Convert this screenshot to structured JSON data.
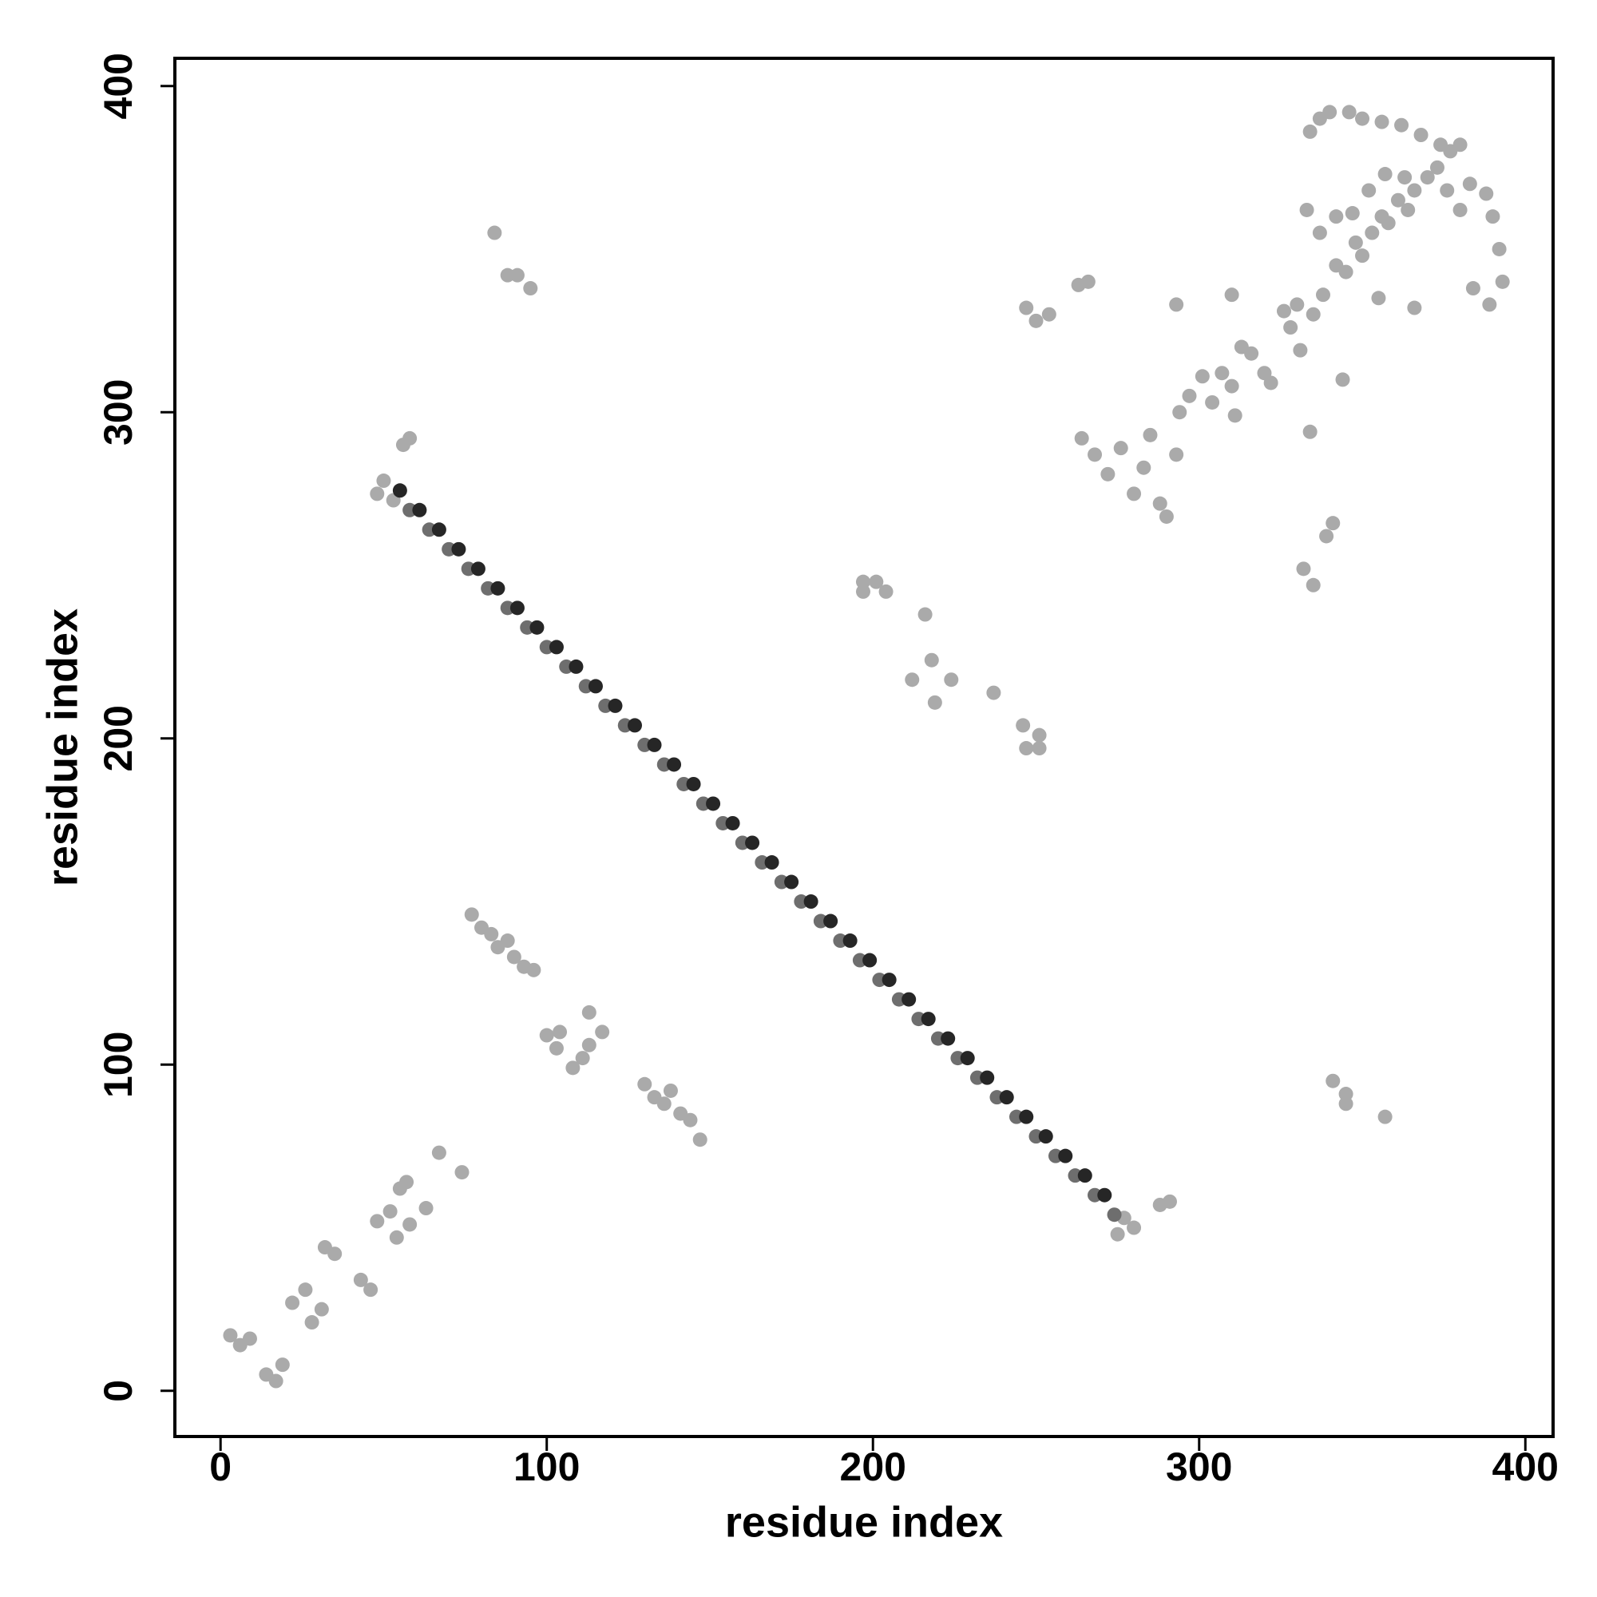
{
  "chart_data": {
    "type": "scatter",
    "x_label": "residue index",
    "y_label": "residue index",
    "xlim": [
      -14,
      408.5
    ],
    "ylim": [
      -14,
      408.5
    ],
    "xticks": [
      0,
      100,
      200,
      300,
      400
    ],
    "yticks": [
      0,
      100,
      200,
      300,
      400
    ],
    "grid": false,
    "series": [
      {
        "color": "#aaaaaa",
        "x": [
          3,
          6,
          9,
          14,
          17,
          19,
          22,
          26,
          28,
          31,
          32,
          35,
          43,
          46,
          48,
          52,
          54,
          55,
          57,
          58,
          63,
          67,
          74,
          77,
          80,
          83,
          85,
          88,
          90,
          93,
          96,
          100,
          103,
          104,
          108,
          111,
          113,
          117,
          113,
          130,
          133,
          136,
          138,
          141,
          144,
          147,
          84,
          88,
          91,
          95,
          48,
          50,
          53,
          56,
          58,
          275,
          280,
          277,
          288,
          291,
          197,
          201,
          204,
          197,
          216,
          212,
          218,
          219,
          224,
          237,
          246,
          247,
          251,
          251,
          247,
          250,
          254,
          263,
          266,
          264,
          268,
          272,
          276,
          280,
          283,
          285,
          288,
          290,
          293,
          293,
          294,
          297,
          301,
          304,
          307,
          310,
          311,
          310,
          313,
          316,
          320,
          322,
          326,
          328,
          330,
          334,
          332,
          335,
          341,
          339,
          344,
          341,
          345,
          345,
          357,
          331,
          335,
          338,
          342,
          345,
          348,
          350,
          353,
          356,
          358,
          361,
          364,
          366,
          370,
          373,
          377,
          380,
          376,
          380,
          383,
          388,
          390,
          392,
          393,
          389,
          384,
          366,
          355,
          333,
          337,
          334,
          337,
          340,
          346,
          350,
          356,
          362,
          368,
          374,
          363,
          357,
          352,
          342,
          347
        ],
        "values": [
          17,
          14,
          16,
          5,
          3,
          8,
          27,
          31,
          21,
          25,
          44,
          42,
          34,
          31,
          52,
          55,
          47,
          62,
          64,
          51,
          56,
          73,
          67,
          146,
          142,
          140,
          136,
          138,
          133,
          130,
          129,
          109,
          105,
          110,
          99,
          102,
          116,
          110,
          106,
          94,
          90,
          88,
          92,
          85,
          83,
          77,
          355,
          342,
          342,
          338,
          275,
          279,
          273,
          290,
          292,
          48,
          50,
          53,
          57,
          58,
          248,
          248,
          245,
          245,
          238,
          218,
          224,
          211,
          218,
          214,
          204,
          197,
          201,
          197,
          332,
          328,
          330,
          339,
          340,
          292,
          287,
          281,
          289,
          275,
          283,
          293,
          272,
          268,
          287,
          333,
          300,
          305,
          311,
          303,
          312,
          308,
          299,
          336,
          320,
          318,
          312,
          309,
          331,
          326,
          333,
          294,
          252,
          247,
          266,
          262,
          310,
          95,
          91,
          88,
          84,
          319,
          330,
          336,
          345,
          343,
          352,
          348,
          355,
          360,
          358,
          365,
          362,
          368,
          372,
          375,
          380,
          382,
          368,
          362,
          370,
          367,
          360,
          350,
          340,
          333,
          338,
          332,
          335,
          362,
          355,
          386,
          390,
          392,
          392,
          390,
          389,
          388,
          385,
          382,
          372,
          373,
          368,
          360,
          361
        ]
      },
      {
        "color": "#6e6e6e",
        "x": [
          58,
          64,
          70,
          76,
          82,
          88,
          94,
          100,
          106,
          112,
          118,
          124,
          130,
          136,
          142,
          148,
          154,
          160,
          166,
          172,
          178,
          184,
          190,
          196,
          202,
          208,
          214,
          220,
          226,
          232,
          238,
          244,
          250,
          256,
          262,
          268,
          274
        ],
        "values": [
          270,
          264,
          258,
          252,
          246,
          240,
          234,
          228,
          222,
          216,
          210,
          204,
          198,
          192,
          186,
          180,
          174,
          168,
          162,
          156,
          150,
          144,
          138,
          132,
          126,
          120,
          114,
          108,
          102,
          96,
          90,
          84,
          78,
          72,
          66,
          60,
          54
        ]
      },
      {
        "color": "#262626",
        "x": [
          55,
          61,
          67,
          73,
          79,
          85,
          91,
          97,
          103,
          109,
          115,
          121,
          127,
          133,
          139,
          145,
          151,
          157,
          163,
          169,
          175,
          181,
          187,
          193,
          199,
          205,
          211,
          217,
          223,
          229,
          235,
          241,
          247,
          253,
          259,
          265,
          271
        ],
        "values": [
          276,
          270,
          264,
          258,
          252,
          246,
          240,
          234,
          228,
          222,
          216,
          210,
          204,
          198,
          192,
          186,
          180,
          174,
          168,
          162,
          156,
          150,
          144,
          138,
          132,
          126,
          120,
          114,
          108,
          102,
          96,
          90,
          84,
          78,
          72,
          66,
          60
        ]
      }
    ]
  }
}
